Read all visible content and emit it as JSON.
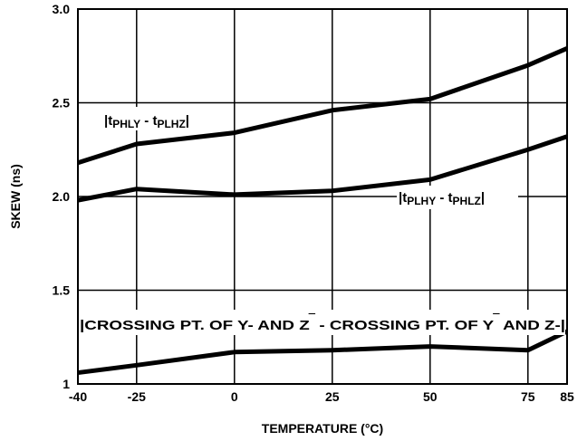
{
  "chart_data": {
    "type": "line",
    "xlabel": "TEMPERATURE (°C)",
    "ylabel": "SKEW (ns)",
    "x_tick_labels": [
      "-40",
      "-25",
      "0",
      "25",
      "50",
      "75",
      "85"
    ],
    "y_tick_labels": [
      "1",
      "1.5",
      "2.0",
      "2.5",
      "3.0"
    ],
    "x_ticks": [
      -40,
      -25,
      0,
      25,
      50,
      75,
      85
    ],
    "y_ticks": [
      1.0,
      1.5,
      2.0,
      2.5,
      3.0
    ],
    "xlim": [
      -40,
      85
    ],
    "ylim": [
      1.0,
      3.0
    ],
    "grid": true,
    "legend": "none",
    "series": [
      {
        "x": [
          -40,
          -25,
          0,
          25,
          50,
          75,
          85
        ],
        "y": [
          2.18,
          2.28,
          2.34,
          2.46,
          2.52,
          2.7,
          2.79
        ]
      },
      {
        "x": [
          -40,
          -25,
          0,
          25,
          50,
          75,
          85
        ],
        "y": [
          1.98,
          2.04,
          2.01,
          2.03,
          2.09,
          2.25,
          2.32
        ]
      },
      {
        "x": [
          -40,
          -25,
          0,
          25,
          50,
          75,
          85
        ],
        "y": [
          1.06,
          1.1,
          1.17,
          1.18,
          1.2,
          1.18,
          1.28
        ]
      }
    ],
    "annotations": {
      "upper": {
        "pre": "|t",
        "sub1": "PHLY",
        "mid": " - t",
        "sub2": "PLHZ",
        "post": "|"
      },
      "middle": {
        "pre": "|t",
        "sub1": "PLHY",
        "mid": " - t",
        "sub2": "PHLZ",
        "post": "|"
      },
      "lower": {
        "part1": "|CROSSING PT. OF Y- AND Z",
        "bar1": "‾",
        "part2": " - CROSSING PT. OF Y",
        "bar2": "‾",
        "part3": " AND Z-|"
      }
    }
  }
}
